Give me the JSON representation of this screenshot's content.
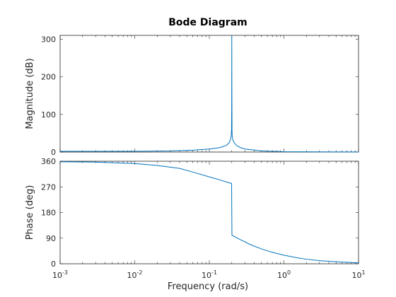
{
  "chart_data": {
    "type": "line",
    "title": "Bode Diagram",
    "xlabel": "Frequency  (rad/s)",
    "x_scale": "log",
    "xlim": [
      0.001,
      10
    ],
    "x_ticks": [
      {
        "base": "10",
        "exp": "-3",
        "value": 0.001
      },
      {
        "base": "10",
        "exp": "-2",
        "value": 0.01
      },
      {
        "base": "10",
        "exp": "-1",
        "value": 0.1
      },
      {
        "base": "10",
        "exp": "0",
        "value": 1
      },
      {
        "base": "10",
        "exp": "1",
        "value": 10
      }
    ],
    "line_color": "#0072bd",
    "grid": false,
    "panels": [
      {
        "ylabel": "Magnitude (dB)",
        "ylim": [
          0,
          310
        ],
        "y_ticks": [
          "0",
          "100",
          "200",
          "300"
        ],
        "y_tick_values": [
          0,
          100,
          200,
          300
        ],
        "x": [
          0.001,
          0.003,
          0.01,
          0.03,
          0.06,
          0.1,
          0.14,
          0.17,
          0.185,
          0.193,
          0.197,
          0.1985,
          0.1995,
          0.2,
          0.2005,
          0.2015,
          0.203,
          0.207,
          0.215,
          0.23,
          0.26,
          0.3,
          0.5,
          1,
          3,
          10
        ],
        "y": [
          2,
          2,
          2,
          3,
          5,
          8,
          12,
          18,
          25,
          35,
          45,
          60,
          120,
          310,
          175,
          55,
          40,
          32,
          25,
          18,
          12,
          8,
          3,
          1,
          0.5,
          0.2
        ]
      },
      {
        "ylabel": "Phase (deg)",
        "ylim": [
          0,
          360
        ],
        "y_ticks": [
          "0",
          "90",
          "180",
          "270",
          "360"
        ],
        "y_tick_values": [
          0,
          90,
          180,
          270,
          360
        ],
        "x": [
          0.001,
          0.003,
          0.01,
          0.02,
          0.04,
          0.06,
          0.1,
          0.14,
          0.18,
          0.199,
          0.2,
          0.201,
          0.25,
          0.35,
          0.5,
          0.7,
          1,
          1.5,
          2,
          3,
          5,
          7,
          10
        ],
        "y": [
          358,
          357,
          352,
          345,
          335,
          322,
          305,
          294,
          285,
          282,
          182,
          100,
          87,
          68,
          52,
          40,
          30,
          21,
          16,
          11,
          7,
          5,
          3
        ]
      }
    ]
  }
}
